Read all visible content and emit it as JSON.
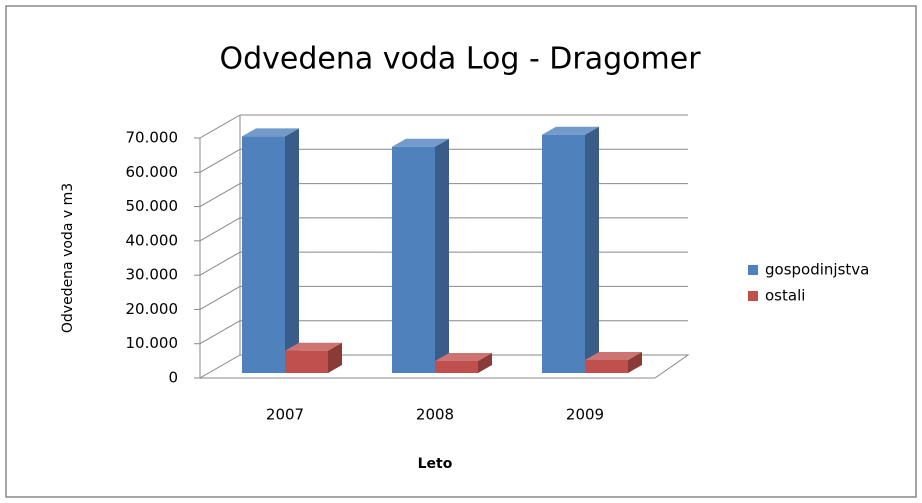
{
  "chart_data": {
    "type": "bar3d",
    "title": "Odvedena voda Log - Dragomer",
    "xlabel": "Leto",
    "ylabel": "Odvedena voda v m3",
    "categories": [
      "2007",
      "2008",
      "2009"
    ],
    "series": [
      {
        "name": "gospodinjstva",
        "color": "#4f81bd",
        "values": [
          69000,
          66000,
          69500
        ]
      },
      {
        "name": "ostali",
        "color": "#c0504d",
        "values": [
          6500,
          3500,
          3800
        ]
      }
    ],
    "ylim": [
      0,
      70000
    ],
    "yticks": [
      0,
      {
        "value": 10000,
        "label": "10.000"
      },
      {
        "value": 20000,
        "label": "20.000"
      },
      {
        "value": 30000,
        "label": "30.000"
      },
      {
        "value": 40000,
        "label": "40.000"
      },
      {
        "value": 50000,
        "label": "50.000"
      },
      {
        "value": 60000,
        "label": "60.000"
      },
      {
        "value": 70000,
        "label": "70.000"
      }
    ],
    "grid": true,
    "legend": "right"
  }
}
